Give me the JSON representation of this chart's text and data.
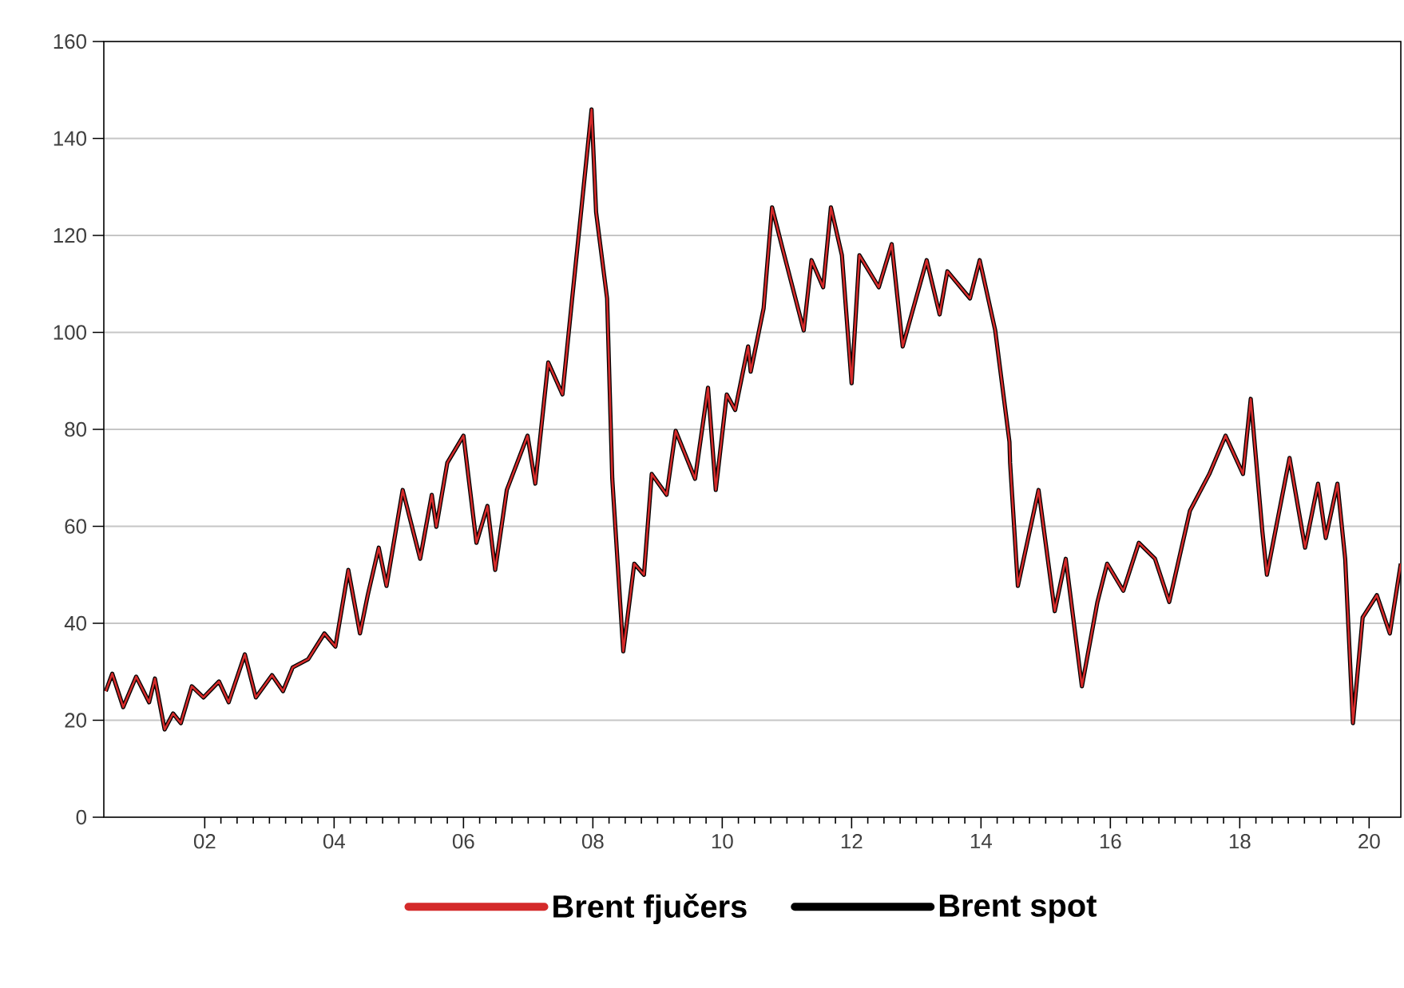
{
  "chart_data": {
    "type": "line",
    "x": [
      2000.47,
      2000.57,
      2000.74,
      2000.94,
      2001.14,
      2001.23,
      2001.38,
      2001.51,
      2001.63,
      2001.8,
      2001.98,
      2002.22,
      2002.37,
      2002.62,
      2002.79,
      2003.04,
      2003.21,
      2003.36,
      2003.6,
      2003.85,
      2004.02,
      2004.22,
      2004.4,
      2004.52,
      2004.69,
      2004.81,
      2005.06,
      2005.33,
      2005.51,
      2005.58,
      2005.75,
      2006.0,
      2006.2,
      2006.37,
      2006.49,
      2006.67,
      2006.99,
      2007.11,
      2007.31,
      2007.53,
      2007.68,
      2007.8,
      2007.98,
      2008.05,
      2008.22,
      2008.3,
      2008.47,
      2008.64,
      2008.79,
      2008.91,
      2009.14,
      2009.28,
      2009.58,
      2009.78,
      2009.9,
      2010.07,
      2010.2,
      2010.4,
      2010.44,
      2010.64,
      2010.77,
      2010.94,
      2011.26,
      2011.38,
      2011.56,
      2011.68,
      2011.85,
      2012.0,
      2012.12,
      2012.42,
      2012.62,
      2012.79,
      2013.16,
      2013.36,
      2013.48,
      2013.83,
      2013.98,
      2014.22,
      2014.44,
      2014.45,
      2014.57,
      2014.89,
      2015.14,
      2015.31,
      2015.56,
      2015.8,
      2015.95,
      2016.2,
      2016.44,
      2016.69,
      2016.91,
      2017.23,
      2017.53,
      2017.78,
      2018.05,
      2018.17,
      2018.35,
      2018.42,
      2018.77,
      2019.01,
      2019.21,
      2019.33,
      2019.51,
      2019.63,
      2019.75,
      2019.9,
      2020.12,
      2020.32,
      2020.49
    ],
    "series": [
      {
        "name": "Brent fjučers",
        "color": "#d42a2a",
        "values": [
          26,
          29.6,
          22.7,
          29,
          23.7,
          28.6,
          18.1,
          21.4,
          19.4,
          27,
          24.7,
          28,
          23.7,
          33.6,
          24.7,
          29.3,
          26,
          30.9,
          32.6,
          37.9,
          35.2,
          51,
          37.9,
          45.8,
          55.6,
          47.7,
          67.5,
          53.3,
          66.5,
          59.9,
          73.1,
          78.7,
          56.6,
          64.2,
          51,
          67.5,
          78.7,
          68.8,
          93.8,
          87.2,
          107,
          122.5,
          146,
          124.8,
          107,
          69.8,
          34.2,
          52.3,
          50,
          70.8,
          66.5,
          79.7,
          69.8,
          88.6,
          67.5,
          87.2,
          84,
          97.1,
          91.9,
          105,
          125.8,
          116.9,
          100.4,
          114.9,
          109.3,
          125.8,
          115.9,
          89.5,
          115.9,
          109.3,
          118.2,
          97.1,
          114.9,
          103.7,
          112.6,
          107,
          114.9,
          100.4,
          77.4,
          73.1,
          47.7,
          67.5,
          42.5,
          53.3,
          27,
          44.4,
          52.3,
          46.7,
          56.6,
          53.3,
          44.4,
          63.2,
          70.8,
          78.7,
          70.8,
          86.3,
          58.9,
          50,
          74.1,
          55.6,
          68.8,
          57.6,
          68.8,
          53.3,
          19.4,
          41.2,
          45.8,
          37.9,
          52.3
        ]
      },
      {
        "name": "Brent spot",
        "color": "#000000",
        "values": [
          26,
          29.6,
          22.7,
          29,
          23.7,
          28.6,
          18.1,
          21.4,
          19.4,
          27,
          24.7,
          28,
          23.7,
          33.6,
          24.7,
          29.3,
          26,
          30.9,
          32.6,
          37.9,
          35.2,
          51,
          37.9,
          45.8,
          55.6,
          47.7,
          67.5,
          53.3,
          66.5,
          59.9,
          73.1,
          78.7,
          56.6,
          64.2,
          51,
          67.5,
          78.7,
          68.8,
          93.8,
          87.2,
          107,
          122.5,
          146,
          124.8,
          107,
          69.8,
          34.2,
          52.3,
          50,
          70.8,
          66.5,
          79.7,
          69.8,
          88.6,
          67.5,
          87.2,
          84,
          97.1,
          91.9,
          105,
          125.8,
          116.9,
          100.4,
          114.9,
          109.3,
          125.8,
          115.9,
          89.5,
          115.9,
          109.3,
          118.2,
          97.1,
          114.9,
          103.7,
          112.6,
          107,
          114.9,
          100.4,
          77.4,
          73.1,
          47.7,
          67.5,
          42.5,
          53.3,
          27,
          44.4,
          52.3,
          46.7,
          56.6,
          53.3,
          44.4,
          63.2,
          70.8,
          78.7,
          70.8,
          86.3,
          58.9,
          50,
          74.1,
          55.6,
          68.8,
          57.6,
          68.8,
          53.3,
          19.4,
          41.2,
          45.8,
          37.9,
          52.3
        ]
      }
    ],
    "xlim": [
      2000.44,
      2020.49
    ],
    "xticks": [
      {
        "value": 2002,
        "label": "02"
      },
      {
        "value": 2004,
        "label": "04"
      },
      {
        "value": 2006,
        "label": "06"
      },
      {
        "value": 2008,
        "label": "08"
      },
      {
        "value": 2010,
        "label": "10"
      },
      {
        "value": 2012,
        "label": "12"
      },
      {
        "value": 2014,
        "label": "14"
      },
      {
        "value": 2016,
        "label": "16"
      },
      {
        "value": 2018,
        "label": "18"
      },
      {
        "value": 2020,
        "label": "20"
      }
    ],
    "ylim": [
      0,
      160
    ],
    "yticks": [
      0,
      20,
      40,
      60,
      80,
      100,
      120,
      140,
      160
    ],
    "grid": "y",
    "legend": "bottom",
    "marker": "none",
    "line_style": "solid"
  }
}
